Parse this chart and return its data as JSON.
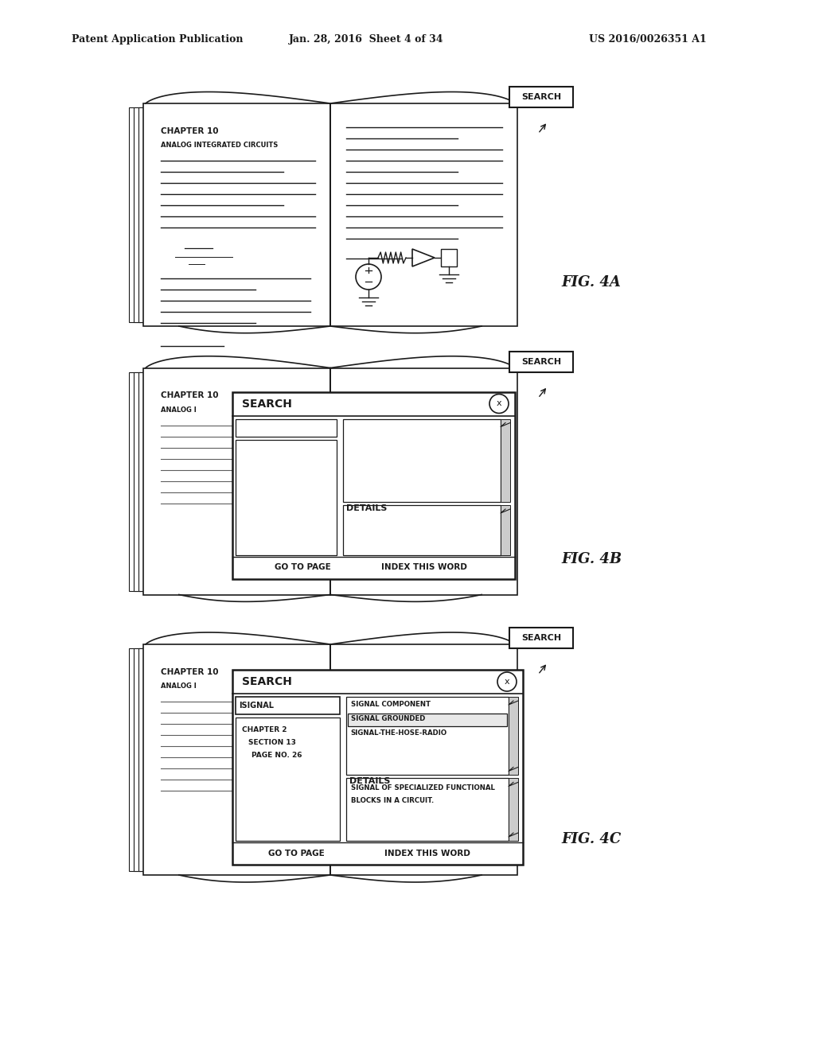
{
  "title_left": "Patent Application Publication",
  "title_mid": "Jan. 28, 2016  Sheet 4 of 34",
  "title_right": "US 2016/0026351 A1",
  "background": "#ffffff",
  "ink": "#1a1a1a",
  "fig4a": {
    "bx": 0.175,
    "by": 0.695,
    "bw": 0.5,
    "bh": 0.245,
    "chapter": "CHAPTER 10",
    "subtitle": "ANALOG INTEGRATED CIRCUITS"
  },
  "fig4b": {
    "bx": 0.175,
    "by": 0.385,
    "bw": 0.5,
    "bh": 0.245,
    "chapter": "CHAPTER 10",
    "analog_i": "ANALOG I"
  },
  "fig4c": {
    "bx": 0.175,
    "by": 0.055,
    "bw": 0.5,
    "bh": 0.265,
    "chapter": "CHAPTER 10",
    "analog_i": "ANALOG I"
  }
}
